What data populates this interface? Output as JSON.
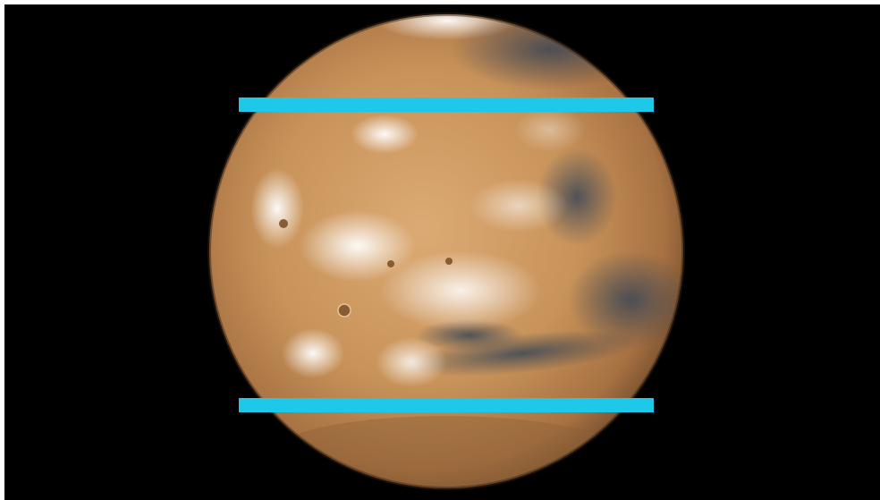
{
  "colors": {
    "background": "#000000",
    "band": "#1ec8e8",
    "planet_base": "#c8935a",
    "planet_shadow": "#6e4a2a",
    "clouds": "#f4f1ec",
    "dark_regions": "#4a5566"
  },
  "subject": "mars-globe-icon"
}
